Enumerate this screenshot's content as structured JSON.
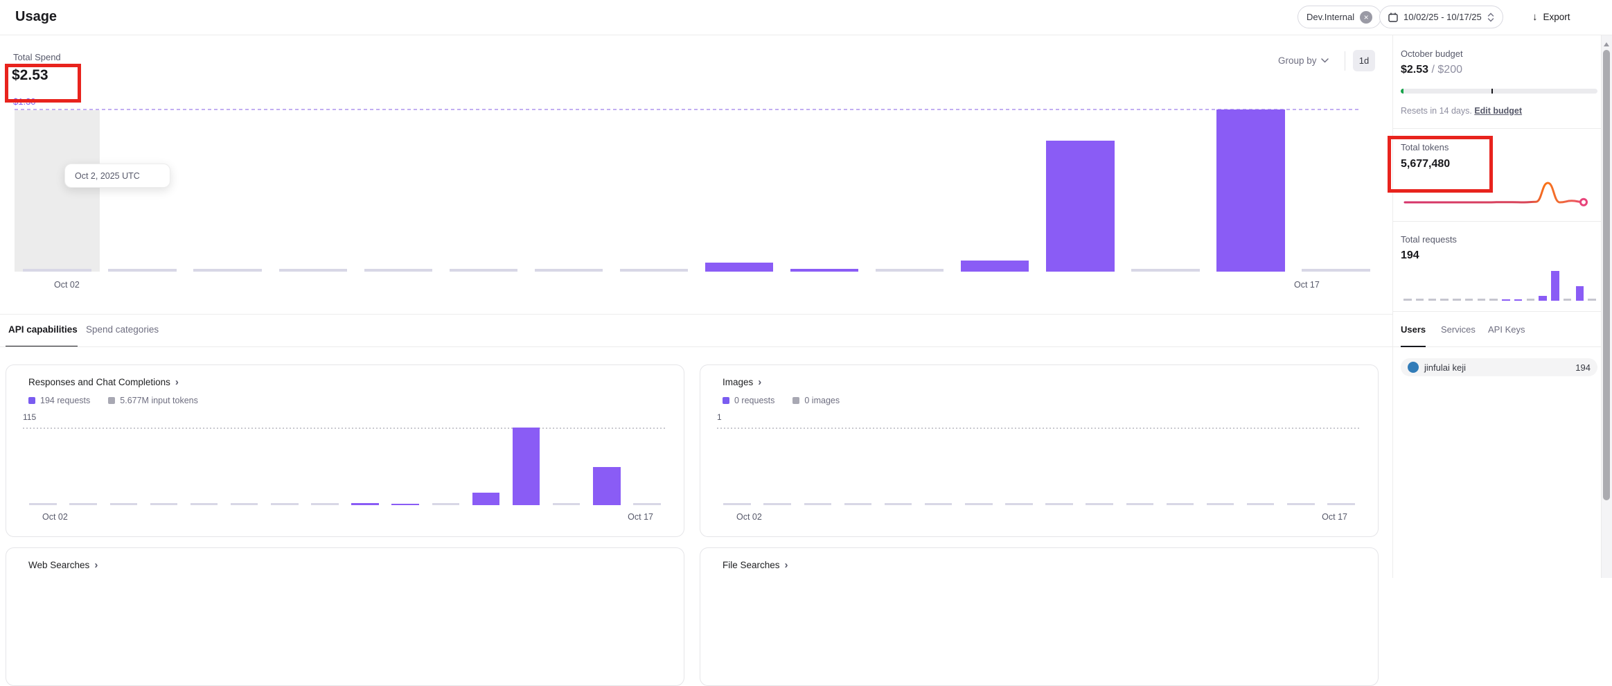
{
  "header": {
    "title": "Usage",
    "project_filter": {
      "label": "Dev.Internal"
    },
    "date_range": "10/02/25 - 10/17/25",
    "export_label": "Export"
  },
  "icons": {
    "remove": "×",
    "download": "↓",
    "chevron_right": "›"
  },
  "spend_summary": {
    "label": "Total Spend",
    "value": "$2.53"
  },
  "budget_marker": {
    "label": "$1.30"
  },
  "chart_controls": {
    "group_by": "Group by",
    "granularity": "1d"
  },
  "main_axis": {
    "start": "Oct 02",
    "end": "Oct 17"
  },
  "tooltip": {
    "text": "Oct 2, 2025 UTC"
  },
  "section_tabs": {
    "items": [
      {
        "label": "API capabilities",
        "active": true
      },
      {
        "label": "Spend categories",
        "active": false
      }
    ]
  },
  "cards": [
    {
      "title": "Responses and Chat Completions",
      "legend": [
        {
          "label": "194 requests"
        },
        {
          "label": "5.677M input tokens"
        }
      ],
      "max_label": "115",
      "axis": {
        "start": "Oct 02",
        "end": "Oct 17"
      }
    },
    {
      "title": "Images",
      "legend": [
        {
          "label": "0 requests"
        },
        {
          "label": "0 images"
        }
      ],
      "max_label": "1",
      "axis": {
        "start": "Oct 02",
        "end": "Oct 17"
      }
    },
    {
      "title": "Web Searches"
    },
    {
      "title": "File Searches"
    }
  ],
  "sidebar": {
    "budget": {
      "title": "October budget",
      "spent": "$2.53",
      "separator": " / ",
      "limit": "$200",
      "progress_pct": 1.3,
      "pace_marker_pct": 46,
      "resets_text": "Resets in 14 days. ",
      "edit_label": "Edit budget"
    },
    "tokens": {
      "title": "Total tokens",
      "value": "5,677,480"
    },
    "requests": {
      "title": "Total requests",
      "value": "194"
    },
    "tabs": {
      "items": [
        {
          "label": "Users",
          "active": true
        },
        {
          "label": "Services",
          "active": false
        },
        {
          "label": "API Keys",
          "active": false
        }
      ]
    },
    "users": [
      {
        "name": "jinfulai keji",
        "requests": "194"
      }
    ]
  },
  "colors": {
    "accent_purple": "#8a5cf5",
    "zero_bar": "#d8d7e6",
    "budget_dash_purple": "#c2aef2",
    "annotation_red": "#e8231d",
    "budget_green": "#18a34a",
    "sparkline_start": "#d6336c",
    "sparkline_peak": "#f97316",
    "avatar_blue": "#327cb8"
  },
  "chart_data": [
    {
      "id": "total-spend-daily",
      "type": "bar",
      "title": "Total Spend",
      "categories": [
        "Oct 02",
        "Oct 03",
        "Oct 04",
        "Oct 05",
        "Oct 06",
        "Oct 07",
        "Oct 08",
        "Oct 09",
        "Oct 10",
        "Oct 11",
        "Oct 12",
        "Oct 13",
        "Oct 14",
        "Oct 15",
        "Oct 16",
        "Oct 17"
      ],
      "values": [
        0,
        0,
        0,
        0,
        0,
        0,
        0,
        0,
        0.07,
        0.02,
        0,
        0.09,
        1.05,
        0,
        1.3,
        0
      ],
      "total": "$2.53",
      "ylabel": "USD",
      "ylim": [
        0,
        1.3
      ],
      "reference_line": {
        "label": "$1.30",
        "value": 1.3
      },
      "highlighted_category": "Oct 02",
      "tooltip": "Oct 2, 2025 UTC",
      "grid": false
    },
    {
      "id": "responses-chat-completions-requests",
      "type": "bar",
      "title": "Responses and Chat Completions",
      "categories": [
        "Oct 02",
        "Oct 03",
        "Oct 04",
        "Oct 05",
        "Oct 06",
        "Oct 07",
        "Oct 08",
        "Oct 09",
        "Oct 10",
        "Oct 11",
        "Oct 12",
        "Oct 13",
        "Oct 14",
        "Oct 15",
        "Oct 16",
        "Oct 17"
      ],
      "values": [
        0,
        0,
        0,
        0,
        0,
        0,
        0,
        0,
        3,
        2,
        0,
        18,
        115,
        0,
        56,
        0
      ],
      "total_requests": 194,
      "input_tokens_label": "5.677M",
      "ylim": [
        0,
        115
      ],
      "max_label": "115"
    },
    {
      "id": "images-requests",
      "type": "bar",
      "title": "Images",
      "categories": [
        "Oct 02",
        "Oct 03",
        "Oct 04",
        "Oct 05",
        "Oct 06",
        "Oct 07",
        "Oct 08",
        "Oct 09",
        "Oct 10",
        "Oct 11",
        "Oct 12",
        "Oct 13",
        "Oct 14",
        "Oct 15",
        "Oct 16",
        "Oct 17"
      ],
      "values": [
        0,
        0,
        0,
        0,
        0,
        0,
        0,
        0,
        0,
        0,
        0,
        0,
        0,
        0,
        0,
        0
      ],
      "total_requests": 0,
      "total_images": 0,
      "ylim": [
        0,
        1
      ],
      "max_label": "1"
    },
    {
      "id": "total-tokens-trend",
      "type": "line",
      "title": "Total tokens",
      "categories": [
        "Oct 02",
        "Oct 03",
        "Oct 04",
        "Oct 05",
        "Oct 06",
        "Oct 07",
        "Oct 08",
        "Oct 09",
        "Oct 10",
        "Oct 11",
        "Oct 12",
        "Oct 13",
        "Oct 14",
        "Oct 15",
        "Oct 16",
        "Oct 17"
      ],
      "values": [
        0,
        0,
        0,
        0,
        0,
        0,
        0,
        0,
        50000,
        30000,
        0,
        150000,
        5000000,
        0,
        400000,
        47480
      ],
      "total": "5,677,480",
      "ylim": [
        0,
        5000000
      ]
    },
    {
      "id": "total-requests-daily",
      "type": "bar",
      "title": "Total requests",
      "categories": [
        "Oct 02",
        "Oct 03",
        "Oct 04",
        "Oct 05",
        "Oct 06",
        "Oct 07",
        "Oct 08",
        "Oct 09",
        "Oct 10",
        "Oct 11",
        "Oct 12",
        "Oct 13",
        "Oct 14",
        "Oct 15",
        "Oct 16",
        "Oct 17"
      ],
      "values": [
        0,
        0,
        0,
        0,
        0,
        0,
        0,
        0,
        3,
        2,
        0,
        18,
        115,
        0,
        56,
        0
      ],
      "total": "194",
      "ylim": [
        0,
        115
      ]
    }
  ]
}
